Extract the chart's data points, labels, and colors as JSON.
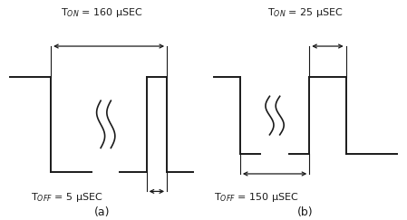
{
  "fig_width": 4.49,
  "fig_height": 2.43,
  "bg_color": "#ffffff",
  "line_color": "#1a1a1a",
  "lw": 1.4,
  "left_panel": {
    "label_a": "(a)",
    "ton_text": "T$_{ON}$ = 160 μSEC",
    "toff_text": "T$_{OFF}$ = 5 μSEC"
  },
  "right_panel": {
    "label_b": "(b)",
    "ton_text": "T$_{ON}$ = 25 μSEC",
    "toff_text": "T$_{OFF}$ = 150 μSEC"
  }
}
